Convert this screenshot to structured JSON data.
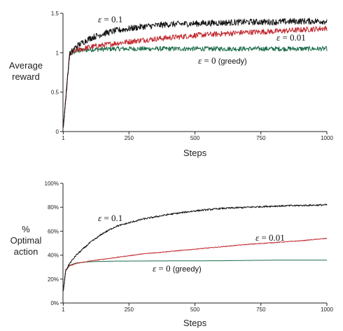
{
  "chart_data": [
    {
      "type": "line",
      "xlabel": "Steps",
      "ylabel_lines": [
        "Average",
        "reward"
      ],
      "xlim": [
        0,
        1000
      ],
      "ylim": [
        0,
        1.5
      ],
      "xticks": [
        1,
        250,
        500,
        750,
        1000
      ],
      "yticks": [
        0,
        0.5,
        1,
        1.5
      ],
      "ytick_labels": [
        "0",
        "0.5",
        "1",
        "1.5"
      ],
      "grid": false,
      "series": [
        {
          "label": "ε = 0.1",
          "color": "#111111",
          "x": [
            1,
            25,
            50,
            100,
            150,
            200,
            300,
            400,
            500,
            600,
            700,
            800,
            900,
            1000
          ],
          "y": [
            0.05,
            0.98,
            1.08,
            1.18,
            1.24,
            1.28,
            1.33,
            1.36,
            1.37,
            1.38,
            1.39,
            1.39,
            1.4,
            1.4
          ],
          "noise": 0.04
        },
        {
          "label": "ε = 0.01",
          "color": "#c0272d",
          "x": [
            1,
            25,
            50,
            100,
            200,
            300,
            400,
            500,
            600,
            700,
            800,
            900,
            1000
          ],
          "y": [
            0.05,
            0.98,
            1.03,
            1.07,
            1.12,
            1.16,
            1.19,
            1.22,
            1.24,
            1.26,
            1.27,
            1.29,
            1.31
          ],
          "noise": 0.035
        },
        {
          "label": "ε = 0 (greedy)",
          "color": "#1a6b48",
          "x": [
            1,
            25,
            50,
            100,
            200,
            300,
            400,
            500,
            600,
            700,
            800,
            900,
            1000
          ],
          "y": [
            0.05,
            0.98,
            1.02,
            1.04,
            1.05,
            1.05,
            1.05,
            1.05,
            1.05,
            1.05,
            1.05,
            1.05,
            1.05
          ],
          "noise": 0.03
        }
      ],
      "annotations": [
        {
          "text_parts": [
            "ε",
            " = 0.1"
          ],
          "series": 0
        },
        {
          "text_parts": [
            "ε",
            " = 0.01"
          ],
          "series": 1
        },
        {
          "text_parts": [
            "ε",
            " = 0 ",
            "(greedy)"
          ],
          "series": 2
        }
      ]
    },
    {
      "type": "line",
      "xlabel": "Steps",
      "ylabel_lines": [
        "%",
        "Optimal",
        "action"
      ],
      "xlim": [
        0,
        1000
      ],
      "ylim": [
        0,
        100
      ],
      "xticks": [
        1,
        250,
        500,
        750,
        1000
      ],
      "yticks": [
        0,
        20,
        40,
        60,
        80,
        100
      ],
      "ytick_labels": [
        "0%",
        "20%",
        "40%",
        "60%",
        "80%",
        "100%"
      ],
      "grid": false,
      "series": [
        {
          "label": "ε = 0.1",
          "color": "#111111",
          "x": [
            1,
            10,
            25,
            50,
            100,
            150,
            200,
            300,
            400,
            500,
            600,
            700,
            800,
            900,
            1000
          ],
          "y": [
            10,
            27,
            33,
            40,
            50,
            58,
            64,
            70,
            74,
            77,
            79,
            80,
            81,
            81.5,
            82
          ],
          "noise": 0.7
        },
        {
          "label": "ε = 0.01",
          "color": "#c0272d",
          "x": [
            1,
            10,
            25,
            50,
            100,
            200,
            300,
            400,
            500,
            600,
            700,
            800,
            900,
            1000
          ],
          "y": [
            10,
            27,
            31,
            33,
            35,
            38,
            41,
            43,
            45,
            47,
            49,
            50.5,
            52,
            54
          ],
          "noise": 0.3
        },
        {
          "label": "ε = 0 (greedy)",
          "color": "#1a6b48",
          "x": [
            1,
            10,
            25,
            50,
            100,
            200,
            400,
            600,
            700,
            800,
            1000
          ],
          "y": [
            10,
            27,
            31.5,
            33.5,
            34.5,
            35,
            35.2,
            35.3,
            35.6,
            35.8,
            35.8
          ],
          "noise": 0
        }
      ],
      "annotations": [
        {
          "text_parts": [
            "ε",
            " = 0.1"
          ],
          "series": 0
        },
        {
          "text_parts": [
            "ε",
            " = 0.01"
          ],
          "series": 1
        },
        {
          "text_parts": [
            "ε",
            " = 0 ",
            "(greedy)"
          ],
          "series": 2
        }
      ]
    }
  ]
}
